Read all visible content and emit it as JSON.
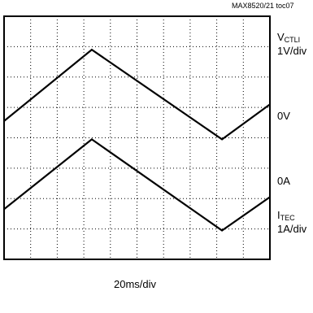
{
  "figure_id": "MAX8520/21 toc07",
  "labels": {
    "v_main": "V",
    "v_sub": "CTLI",
    "v_scale": "1V/div",
    "zero_v": "0V",
    "zero_a": "0A",
    "i_main": "I",
    "i_sub": "TEC",
    "i_scale": "1A/div",
    "x_scale": "20ms/div"
  },
  "chart_data": {
    "type": "line",
    "title": "",
    "x_unit": "div",
    "xlim": [
      0,
      10
    ],
    "ylim": [
      -4,
      4
    ],
    "y_unit": "div",
    "grid": true,
    "series": [
      {
        "name": "VCTLI",
        "scale": "1V/div",
        "reference_level": "0V",
        "reference_div": 0,
        "x": [
          0,
          3.3,
          8.2,
          10
        ],
        "y": [
          0.55,
          2.9,
          -0.05,
          1.1
        ]
      },
      {
        "name": "ITEC",
        "scale": "1A/div",
        "reference_level": "0A",
        "reference_div": -2,
        "x": [
          0,
          3.3,
          8.2,
          10
        ],
        "y": [
          -2.35,
          -0.05,
          -3.05,
          -1.95
        ]
      }
    ]
  }
}
